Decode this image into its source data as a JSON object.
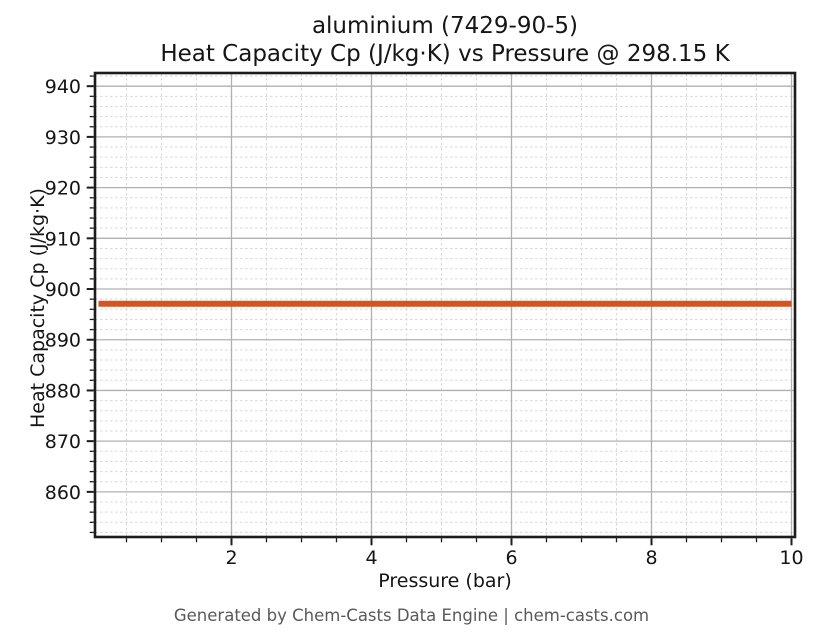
{
  "title": {
    "line1": "aluminium (7429-90-5)",
    "line2": "Heat Capacity Cp (J/kg·K) vs Pressure @ 298.15 K"
  },
  "footer": {
    "text": "Generated by Chem-Casts Data Engine | chem-casts.com"
  },
  "chart_data": {
    "type": "line",
    "title": "aluminium (7429-90-5) — Heat Capacity Cp (J/kg·K) vs Pressure @ 298.15 K",
    "xlabel": "Pressure (bar)",
    "ylabel": "Heat Capacity Cp (J/kg·K)",
    "xlim": [
      0.05,
      10.05
    ],
    "ylim": [
      851.1,
      942.6
    ],
    "x_ticks": [
      2,
      4,
      6,
      8,
      10
    ],
    "y_ticks": [
      860,
      870,
      880,
      890,
      900,
      910,
      920,
      930,
      940
    ],
    "x_minor_step": 0.5,
    "y_minor_step": 2,
    "grid": true,
    "legend": "none",
    "series": [
      {
        "name": "Heat Capacity Cp",
        "color": "#d4531e",
        "x": [
          0.1,
          10.0
        ],
        "y": [
          897.1,
          897.1
        ]
      }
    ]
  },
  "style": {
    "background": "#ffffff",
    "spine_color": "#1c1c1c",
    "tick_color": "#1c1c1c",
    "tick_label_color": "#151515",
    "grid_major_color": "#b0b0b0",
    "grid_minor_color": "#d9d9d9",
    "line_width": 6
  }
}
